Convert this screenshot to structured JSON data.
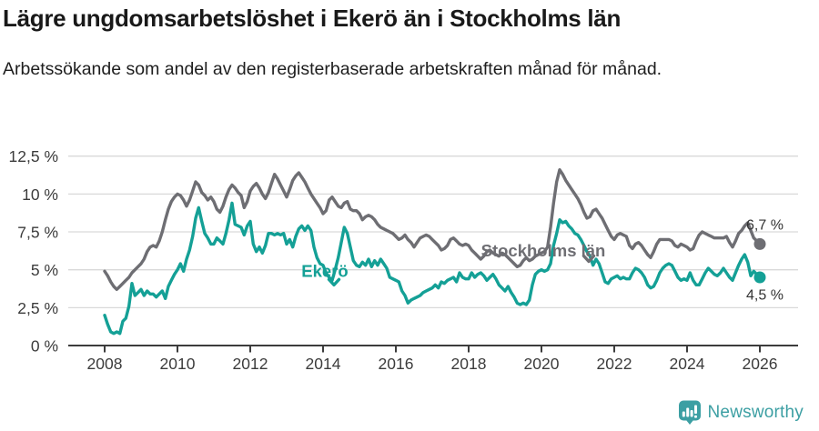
{
  "header": {
    "title": "Lägre ungdomsarbetslöshet i Ekerö än i Stockholms län",
    "subtitle": "Arbetssökande som andel av den registerbaserade arbetskraften månad för månad."
  },
  "chart_data": {
    "type": "line",
    "title": "Lägre ungdomsarbetslöshet i Ekerö än i Stockholms län",
    "x_start_year": 2008,
    "points_per_year": 12,
    "x_ticks": [
      2008,
      2010,
      2012,
      2014,
      2016,
      2018,
      2020,
      2022,
      2024,
      2026
    ],
    "ylim": [
      0,
      12.5
    ],
    "grid": true,
    "y_ticks": [
      {
        "v": 0,
        "label": "0 %"
      },
      {
        "v": 2.5,
        "label": "2,5 %"
      },
      {
        "v": 5,
        "label": "5 %"
      },
      {
        "v": 7.5,
        "label": "7,5 %"
      },
      {
        "v": 10,
        "label": "10 %"
      },
      {
        "v": 12.5,
        "label": "12,5 %"
      }
    ],
    "series": [
      {
        "name": "Stockholms län",
        "color": "#6e6e73",
        "end_label": "6,7 %",
        "end_label_pos": "above",
        "values": [
          4.9,
          4.6,
          4.2,
          3.9,
          3.7,
          3.9,
          4.1,
          4.3,
          4.5,
          4.8,
          5.0,
          5.2,
          5.4,
          5.7,
          6.2,
          6.5,
          6.6,
          6.5,
          6.9,
          7.5,
          8.3,
          9.0,
          9.5,
          9.8,
          10.0,
          9.9,
          9.6,
          9.2,
          9.6,
          10.2,
          10.8,
          10.6,
          10.1,
          9.9,
          9.6,
          9.8,
          9.5,
          9.0,
          8.8,
          9.2,
          9.8,
          10.3,
          10.6,
          10.4,
          10.1,
          9.9,
          9.1,
          9.5,
          10.2,
          10.5,
          10.7,
          10.4,
          10.0,
          9.7,
          10.1,
          10.7,
          11.3,
          11.0,
          10.6,
          10.2,
          9.8,
          10.3,
          10.9,
          11.2,
          11.4,
          11.1,
          10.8,
          10.4,
          10.0,
          9.7,
          9.4,
          9.1,
          8.7,
          8.9,
          9.6,
          9.8,
          9.5,
          9.2,
          9.1,
          9.4,
          9.5,
          9.0,
          8.9,
          8.9,
          8.7,
          8.3,
          8.5,
          8.6,
          8.5,
          8.3,
          8.0,
          7.8,
          7.7,
          7.6,
          7.5,
          7.4,
          7.2,
          7.0,
          7.1,
          7.3,
          7.0,
          6.8,
          6.5,
          6.8,
          7.1,
          7.2,
          7.3,
          7.2,
          7.0,
          6.8,
          6.6,
          6.3,
          6.4,
          6.6,
          7.0,
          7.1,
          6.9,
          6.7,
          6.6,
          6.7,
          6.6,
          6.3,
          6.1,
          5.9,
          5.7,
          5.9,
          6.2,
          6.3,
          6.1,
          6.0,
          5.9,
          6.1,
          6.0,
          5.8,
          5.6,
          5.4,
          5.2,
          5.3,
          5.6,
          5.8,
          5.6,
          5.7,
          5.9,
          6.0,
          6.1,
          6.2,
          6.5,
          7.8,
          9.4,
          10.8,
          11.6,
          11.3,
          10.9,
          10.6,
          10.3,
          10.0,
          9.7,
          9.3,
          8.8,
          8.4,
          8.5,
          8.9,
          9.0,
          8.7,
          8.4,
          8.0,
          7.6,
          7.2,
          7.0,
          7.3,
          7.4,
          7.3,
          7.2,
          6.6,
          6.4,
          6.7,
          6.8,
          6.6,
          6.3,
          6.0,
          5.8,
          6.2,
          6.7,
          7.0,
          7.0,
          7.0,
          7.0,
          6.9,
          6.6,
          6.5,
          6.7,
          6.6,
          6.5,
          6.3,
          6.4,
          6.9,
          7.3,
          7.5,
          7.4,
          7.3,
          7.2,
          7.1,
          7.1,
          7.1,
          7.1,
          7.2,
          6.8,
          6.5,
          6.9,
          7.4,
          7.6,
          7.9,
          8.1,
          7.6,
          7.1,
          6.9,
          6.7
        ]
      },
      {
        "name": "Ekerö",
        "color": "#14a096",
        "end_label": "4,5 %",
        "end_label_pos": "below",
        "values": [
          2.0,
          1.4,
          0.9,
          0.8,
          0.9,
          0.8,
          1.6,
          1.8,
          2.6,
          4.1,
          3.3,
          3.5,
          3.7,
          3.3,
          3.6,
          3.4,
          3.4,
          3.2,
          3.4,
          3.6,
          3.1,
          3.9,
          4.3,
          4.7,
          5.0,
          5.4,
          4.9,
          5.7,
          6.3,
          7.2,
          8.4,
          9.1,
          8.2,
          7.4,
          7.1,
          6.7,
          6.7,
          7.1,
          6.9,
          6.7,
          7.4,
          8.3,
          9.4,
          8.0,
          7.9,
          7.8,
          7.3,
          7.9,
          8.2,
          6.7,
          6.2,
          6.5,
          6.1,
          6.6,
          7.4,
          7.4,
          7.3,
          7.4,
          7.3,
          7.4,
          6.7,
          7.0,
          6.5,
          7.2,
          7.7,
          7.9,
          7.6,
          7.9,
          7.6,
          6.5,
          5.8,
          5.4,
          5.3,
          4.8,
          4.5,
          4.3,
          5.0,
          5.8,
          6.8,
          7.8,
          7.4,
          6.5,
          5.6,
          5.3,
          5.2,
          5.5,
          5.3,
          5.7,
          5.2,
          5.6,
          5.3,
          5.7,
          5.4,
          5.1,
          4.5,
          4.4,
          4.3,
          4.2,
          3.6,
          3.3,
          2.8,
          3.0,
          3.1,
          3.2,
          3.3,
          3.5,
          3.6,
          3.7,
          3.8,
          4.0,
          3.8,
          4.2,
          4.1,
          4.3,
          4.4,
          4.5,
          4.2,
          4.8,
          4.5,
          4.4,
          4.4,
          4.8,
          4.5,
          4.7,
          4.8,
          4.6,
          4.3,
          4.5,
          4.7,
          4.4,
          4.0,
          3.8,
          3.6,
          3.9,
          3.5,
          3.2,
          2.8,
          2.7,
          2.8,
          2.7,
          3.0,
          4.0,
          4.7,
          4.9,
          5.0,
          4.9,
          5.0,
          5.4,
          6.6,
          7.4,
          8.3,
          8.1,
          8.2,
          7.9,
          7.7,
          7.4,
          7.3,
          7.0,
          6.6,
          6.2,
          5.9,
          5.3,
          5.7,
          5.4,
          4.8,
          4.2,
          4.1,
          4.4,
          4.5,
          4.6,
          4.4,
          4.5,
          4.4,
          4.4,
          4.8,
          5.1,
          5.0,
          4.8,
          4.5,
          4.0,
          3.8,
          3.9,
          4.3,
          4.8,
          5.1,
          5.3,
          5.4,
          5.3,
          4.9,
          4.5,
          4.3,
          4.4,
          4.3,
          4.8,
          4.3,
          4.0,
          4.0,
          4.4,
          4.8,
          5.1,
          4.9,
          4.7,
          4.6,
          4.8,
          5.1,
          4.8,
          4.5,
          4.3,
          4.8,
          5.3,
          5.7,
          6.0,
          5.5,
          4.6,
          4.9,
          4.7,
          4.5
        ]
      }
    ],
    "annotations": [
      {
        "text": "Stockholms län",
        "color": "#6e6e73",
        "t": 2020.05,
        "v": 6.25,
        "arrow_t": 2021.3,
        "arrow_v": 5.55
      },
      {
        "text": "Ekerö",
        "color": "#14a096",
        "t": 2014.05,
        "v": 4.9,
        "arrow_t": 2014.3,
        "arrow_v": 4.0
      }
    ],
    "axis_color": "#3c3c3c",
    "grid_color": "#d9d9d9",
    "tick_label_color": "#3c3c3c",
    "end_label_color": "#333333"
  },
  "footer": {
    "logo_text": "Newsworthy",
    "logo_color": "#3c9fa3",
    "logo_icon": "bar-chart-speech-bubble-icon"
  }
}
